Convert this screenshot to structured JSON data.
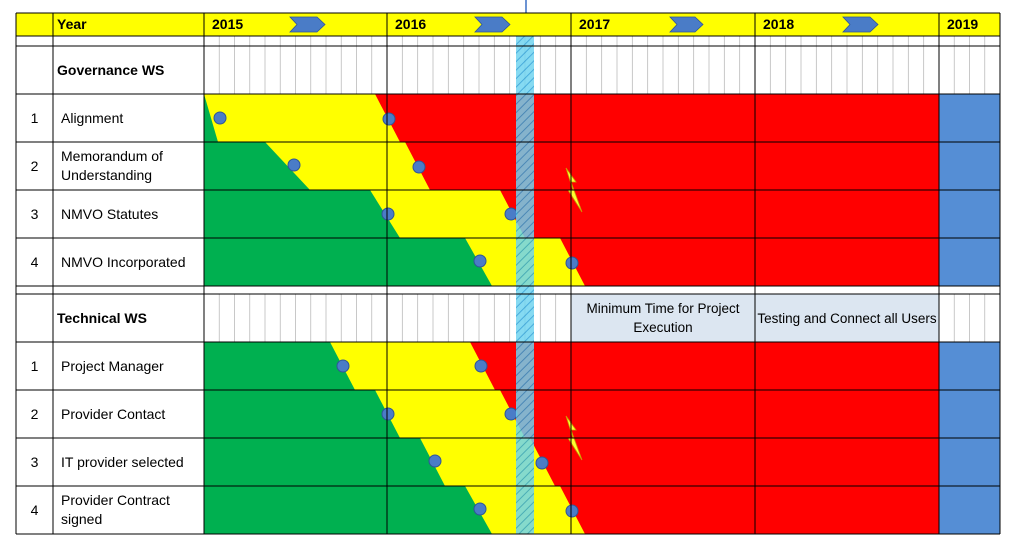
{
  "header": {
    "year_label": "Year",
    "years": [
      "2015",
      "2016",
      "2017",
      "2018",
      "2019"
    ]
  },
  "sections": [
    {
      "title": "Governance WS",
      "rows": [
        {
          "number": "1",
          "label": "Alignment"
        },
        {
          "number": "2",
          "label": "Memorandum of Understanding"
        },
        {
          "number": "3",
          "label": "NMVO Statutes"
        },
        {
          "number": "4",
          "label": "NMVO Incorporated"
        }
      ]
    },
    {
      "title": "Technical WS",
      "notes": [
        "Minimum Time for Project Execution",
        "Testing and Connect all Users"
      ],
      "rows": [
        {
          "number": "1",
          "label": "Project Manager"
        },
        {
          "number": "2",
          "label": "Provider Contact"
        },
        {
          "number": "3",
          "label": "IT provider selected"
        },
        {
          "number": "4",
          "label": "Provider Contract signed"
        }
      ]
    }
  ]
}
